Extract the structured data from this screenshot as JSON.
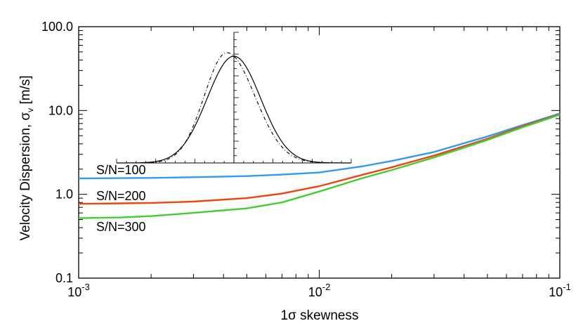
{
  "chart_data": {
    "type": "line",
    "xlabel": "1σ skewness",
    "ylabel_main": "Velocity Dispersion, σ",
    "ylabel_sub": "v",
    "ylabel_unit": " [m/s]",
    "xscale": "log",
    "yscale": "log",
    "xlim": [
      0.001,
      0.1
    ],
    "ylim": [
      0.1,
      100
    ],
    "x_ticks": [
      {
        "base": "10",
        "exp": "-3"
      },
      {
        "base": "10",
        "exp": "-2"
      },
      {
        "base": "10",
        "exp": "-1"
      }
    ],
    "y_ticks": [
      "0.1",
      "1.0",
      "10.0",
      "100.0"
    ],
    "series": [
      {
        "name": "S/N=100",
        "color": "#3399ee",
        "x": [
          0.001,
          0.0015,
          0.002,
          0.003,
          0.005,
          0.007,
          0.01,
          0.015,
          0.02,
          0.03,
          0.05,
          0.07,
          0.1
        ],
        "y": [
          1.55,
          1.56,
          1.57,
          1.6,
          1.65,
          1.72,
          1.82,
          2.15,
          2.5,
          3.2,
          4.9,
          6.7,
          9.2
        ]
      },
      {
        "name": "S/N=200",
        "color": "#ee4411",
        "x": [
          0.001,
          0.0015,
          0.002,
          0.003,
          0.005,
          0.007,
          0.01,
          0.015,
          0.02,
          0.03,
          0.05,
          0.07,
          0.1
        ],
        "y": [
          0.77,
          0.78,
          0.79,
          0.82,
          0.9,
          1.02,
          1.25,
          1.7,
          2.1,
          2.9,
          4.6,
          6.5,
          9.0
        ]
      },
      {
        "name": "S/N=300",
        "color": "#44cc33",
        "x": [
          0.001,
          0.0015,
          0.002,
          0.003,
          0.005,
          0.007,
          0.01,
          0.015,
          0.02,
          0.03,
          0.05,
          0.07,
          0.1
        ],
        "y": [
          0.52,
          0.53,
          0.55,
          0.6,
          0.68,
          0.8,
          1.08,
          1.55,
          1.95,
          2.75,
          4.45,
          6.3,
          8.9
        ]
      }
    ],
    "inset": {
      "type": "line",
      "description_curves": [
        {
          "style": "solid",
          "color": "#000000",
          "center": 0.0,
          "sigma": 1.0,
          "skew": 0.0
        },
        {
          "style": "dash-dot",
          "color": "#000000",
          "center": -0.25,
          "sigma": 0.85,
          "skew": 0.6
        }
      ]
    }
  }
}
